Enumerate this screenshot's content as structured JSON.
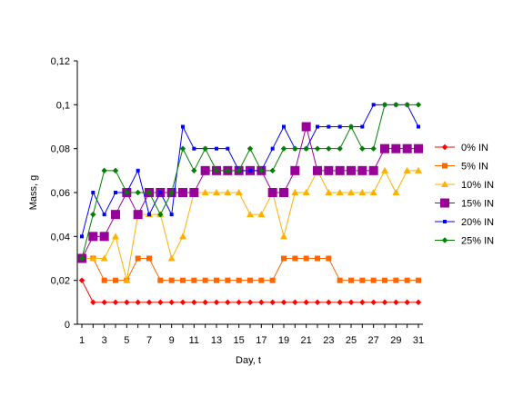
{
  "chart_data": {
    "type": "line",
    "title": "",
    "xlabel": "Day, t",
    "ylabel": "Mass, g",
    "x": [
      1,
      2,
      3,
      4,
      5,
      6,
      7,
      8,
      9,
      10,
      11,
      12,
      13,
      14,
      15,
      16,
      17,
      18,
      19,
      20,
      21,
      22,
      23,
      24,
      25,
      26,
      27,
      28,
      29,
      30,
      31
    ],
    "x_tick_labels": [
      "1",
      "3",
      "5",
      "7",
      "9",
      "11",
      "13",
      "15",
      "17",
      "19",
      "21",
      "23",
      "25",
      "27",
      "29",
      "31"
    ],
    "x_tick_values": [
      1,
      3,
      5,
      7,
      9,
      11,
      13,
      15,
      17,
      19,
      21,
      23,
      25,
      27,
      29,
      31
    ],
    "xlim": [
      1,
      31
    ],
    "y_tick_labels": [
      "0",
      "0,02",
      "0,04",
      "0,06",
      "0,08",
      "0,1",
      "0,12"
    ],
    "y_tick_values": [
      0,
      0.02,
      0.04,
      0.06,
      0.08,
      0.1,
      0.12
    ],
    "ylim": [
      0,
      0.12
    ],
    "grid": false,
    "legend_position": "right",
    "series": [
      {
        "name": "0% IN",
        "color": "#ff0000",
        "marker": "diamond",
        "values": [
          0.02,
          0.01,
          0.01,
          0.01,
          0.01,
          0.01,
          0.01,
          0.01,
          0.01,
          0.01,
          0.01,
          0.01,
          0.01,
          0.01,
          0.01,
          0.01,
          0.01,
          0.01,
          0.01,
          0.01,
          0.01,
          0.01,
          0.01,
          0.01,
          0.01,
          0.01,
          0.01,
          0.01,
          0.01,
          0.01,
          0.01
        ]
      },
      {
        "name": "5% IN",
        "color": "#ff6600",
        "marker": "square",
        "values": [
          0.03,
          0.03,
          0.02,
          0.02,
          0.02,
          0.03,
          0.03,
          0.02,
          0.02,
          0.02,
          0.02,
          0.02,
          0.02,
          0.02,
          0.02,
          0.02,
          0.02,
          0.02,
          0.03,
          0.03,
          0.03,
          0.03,
          0.03,
          0.02,
          0.02,
          0.02,
          0.02,
          0.02,
          0.02,
          0.02,
          0.02
        ]
      },
      {
        "name": "10% IN",
        "color": "#ffb000",
        "marker": "triangle",
        "values": [
          0.03,
          0.03,
          0.03,
          0.04,
          0.02,
          0.05,
          0.05,
          0.05,
          0.03,
          0.04,
          0.06,
          0.06,
          0.06,
          0.06,
          0.06,
          0.05,
          0.05,
          0.06,
          0.04,
          0.06,
          0.06,
          0.07,
          0.06,
          0.06,
          0.06,
          0.06,
          0.06,
          0.07,
          0.06,
          0.07,
          0.07
        ]
      },
      {
        "name": "15% IN",
        "color": "#990099",
        "marker": "bigsquare",
        "values": [
          0.03,
          0.04,
          0.04,
          0.05,
          0.06,
          0.05,
          0.06,
          0.06,
          0.06,
          0.06,
          0.06,
          0.07,
          0.07,
          0.07,
          0.07,
          0.07,
          0.07,
          0.06,
          0.06,
          0.07,
          0.09,
          0.07,
          0.07,
          0.07,
          0.07,
          0.07,
          0.07,
          0.08,
          0.08,
          0.08,
          0.08
        ]
      },
      {
        "name": "20% IN",
        "color": "#0000ff",
        "marker": "smallsquare",
        "values": [
          0.04,
          0.06,
          0.05,
          0.06,
          0.06,
          0.07,
          0.05,
          0.06,
          0.05,
          0.09,
          0.08,
          0.08,
          0.08,
          0.08,
          0.07,
          0.07,
          0.07,
          0.08,
          0.09,
          0.08,
          0.08,
          0.09,
          0.09,
          0.09,
          0.09,
          0.09,
          0.1,
          0.1,
          0.1,
          0.1,
          0.09
        ]
      },
      {
        "name": "25% IN",
        "color": "#008000",
        "marker": "diamond",
        "values": [
          0.03,
          0.05,
          0.07,
          0.07,
          0.06,
          0.06,
          0.06,
          0.05,
          0.06,
          0.08,
          0.07,
          0.08,
          0.07,
          0.07,
          0.07,
          0.08,
          0.07,
          0.07,
          0.08,
          0.08,
          0.08,
          0.08,
          0.08,
          0.08,
          0.09,
          0.08,
          0.08,
          0.1,
          0.1,
          0.1,
          0.1
        ]
      }
    ]
  }
}
